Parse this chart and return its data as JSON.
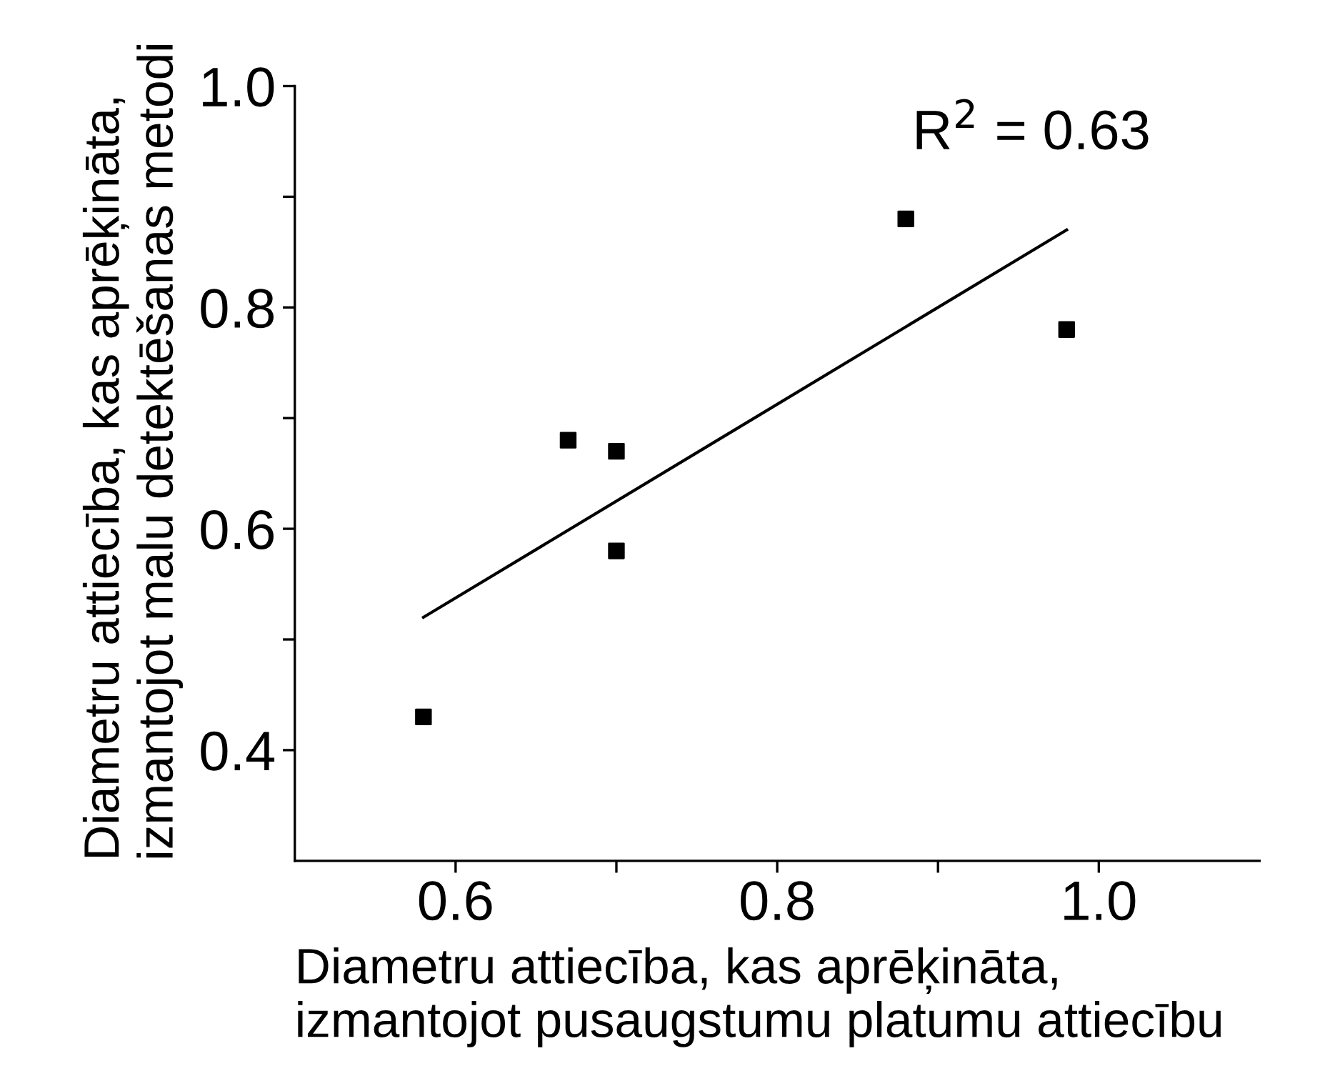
{
  "chart_data": {
    "type": "scatter",
    "xlabel": "Diametru attiecība, kas aprēķināta,\nizmantojot pusaugstumu platumu attiecību",
    "ylabel": "Diametru attiecība, kas aprēķināta,\nizmantojot malu detektēšanas metodi",
    "annotations": [
      "R$^{2}$ = 0.63"
    ],
    "series": [
      {
        "color": "#000000",
        "marker": "square",
        "x": [
          0.58,
          0.67,
          0.7,
          0.7,
          0.88,
          0.98
        ],
        "values": [
          0.43,
          0.68,
          0.67,
          0.58,
          0.88,
          0.78
        ]
      },
      {
        "type": "line",
        "color": "#000000",
        "marker": "none",
        "x": [
          0.58,
          0.98
        ],
        "values": [
          0.52,
          0.87
        ]
      }
    ],
    "xlim": [
      0.5,
      1.1
    ],
    "ylim": [
      0.3,
      1.0
    ],
    "xticks": [
      0.6,
      {
        "value": 0.7,
        "label": null
      },
      0.8,
      {
        "value": 0.9,
        "label": null
      },
      {
        "value": 1.0,
        "label": "1.0"
      }
    ],
    "yticks": [
      {
        "value": 0.5,
        "label": null
      },
      0.6,
      {
        "value": 0.7,
        "label": null
      },
      0.8,
      {
        "value": 0.9,
        "label": null
      },
      {
        "value": 1.0,
        "label": "1.0"
      },
      0.4
    ],
    "grid": false,
    "legend": false
  }
}
